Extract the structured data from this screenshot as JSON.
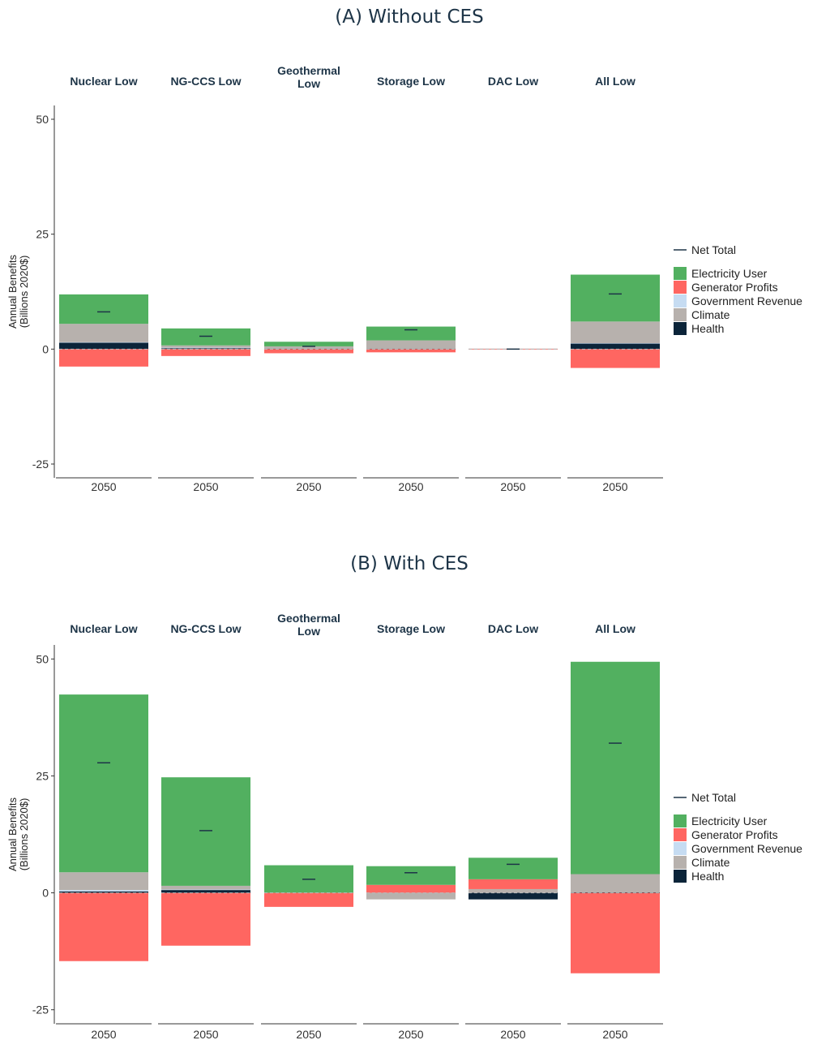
{
  "colors": {
    "electricity_user": "#52b060",
    "generator_profits": "#ff6661",
    "government_revenue": "#c6dcf2",
    "climate": "#b7b1ad",
    "health": "#0b2439",
    "net_total": "#1d3447",
    "axis": "#333333",
    "zero_line": "#bbbbbb"
  },
  "legend": {
    "net_total_label": "Net Total",
    "items": [
      {
        "key": "electricity_user",
        "label": "Electricity User"
      },
      {
        "key": "generator_profits",
        "label": "Generator Profits"
      },
      {
        "key": "government_revenue",
        "label": "Government Revenue"
      },
      {
        "key": "climate",
        "label": "Climate"
      },
      {
        "key": "health",
        "label": "Health"
      }
    ]
  },
  "chart_data": [
    {
      "type": "bar",
      "title": "(A) Without CES",
      "ylabel": "Annual Benefits\n(Billions 2020$)",
      "ylim": [
        -28,
        53
      ],
      "yticks": [
        50,
        25,
        0,
        -25
      ],
      "x_tick": "2050",
      "stacked": true,
      "facets": [
        {
          "label": "Nuclear Low",
          "positive": {
            "health": 1.4,
            "government_revenue": 0.1,
            "climate": 4.0,
            "electricity_user": 6.4
          },
          "negative": {
            "generator_profits": -3.8
          },
          "net_total": 8.1
        },
        {
          "label": "NG-CCS Low",
          "positive": {
            "health": 0.2,
            "government_revenue": 0.1,
            "climate": 0.5,
            "electricity_user": 3.7
          },
          "negative": {
            "generator_profits": -1.5
          },
          "net_total": 2.8
        },
        {
          "label": "Geothermal\nLow",
          "positive": {
            "health": 0.1,
            "climate": 0.5,
            "electricity_user": 1.0
          },
          "negative": {
            "generator_profits": -0.9
          },
          "net_total": 0.6
        },
        {
          "label": "Storage Low",
          "positive": {
            "health": 0.1,
            "climate": 1.8,
            "electricity_user": 3.0
          },
          "negative": {
            "generator_profits": -0.7
          },
          "net_total": 4.2
        },
        {
          "label": "DAC Low",
          "positive": {
            "climate": 0.1
          },
          "negative": {
            "generator_profits": -0.1
          },
          "net_total": 0.0
        },
        {
          "label": "All Low",
          "positive": {
            "health": 1.2,
            "government_revenue": 0.1,
            "climate": 4.7,
            "electricity_user": 10.2
          },
          "negative": {
            "generator_profits": -4.1
          },
          "net_total": 12.0
        }
      ]
    },
    {
      "type": "bar",
      "title": "(B) With CES",
      "ylabel": "Annual Benefits\n(Billions 2020$)",
      "ylim": [
        -28,
        53
      ],
      "yticks": [
        50,
        25,
        0,
        -25
      ],
      "x_tick": "2050",
      "stacked": true,
      "facets": [
        {
          "label": "Nuclear Low",
          "positive": {
            "health": 0.3,
            "climate": 3.8,
            "government_revenue": 0.3,
            "electricity_user": 38.0
          },
          "negative": {
            "generator_profits": -14.6
          },
          "net_total": 27.8
        },
        {
          "label": "NG-CCS Low",
          "positive": {
            "health": 0.6,
            "climate": 0.8,
            "government_revenue": 0.1,
            "electricity_user": 23.2
          },
          "negative": {
            "generator_profits": -11.3
          },
          "net_total": 13.3
        },
        {
          "label": "Geothermal\nLow",
          "positive": {
            "electricity_user": 5.9
          },
          "negative": {
            "generator_profits": -3.0
          },
          "net_total": 2.9
        },
        {
          "label": "Storage Low",
          "positive": {
            "generator_profits": 1.7,
            "electricity_user": 4.0
          },
          "negative": {
            "climate": -1.4
          },
          "net_total": 4.3
        },
        {
          "label": "DAC Low",
          "positive": {
            "climate": 0.8,
            "generator_profits": 2.1,
            "electricity_user": 4.6
          },
          "negative": {
            "health": -1.4
          },
          "net_total": 6.1
        },
        {
          "label": "All Low",
          "positive": {
            "health": 0.1,
            "climate": 3.9,
            "electricity_user": 45.4
          },
          "negative": {
            "generator_profits": -17.2
          },
          "net_total": 32.0
        }
      ]
    }
  ]
}
